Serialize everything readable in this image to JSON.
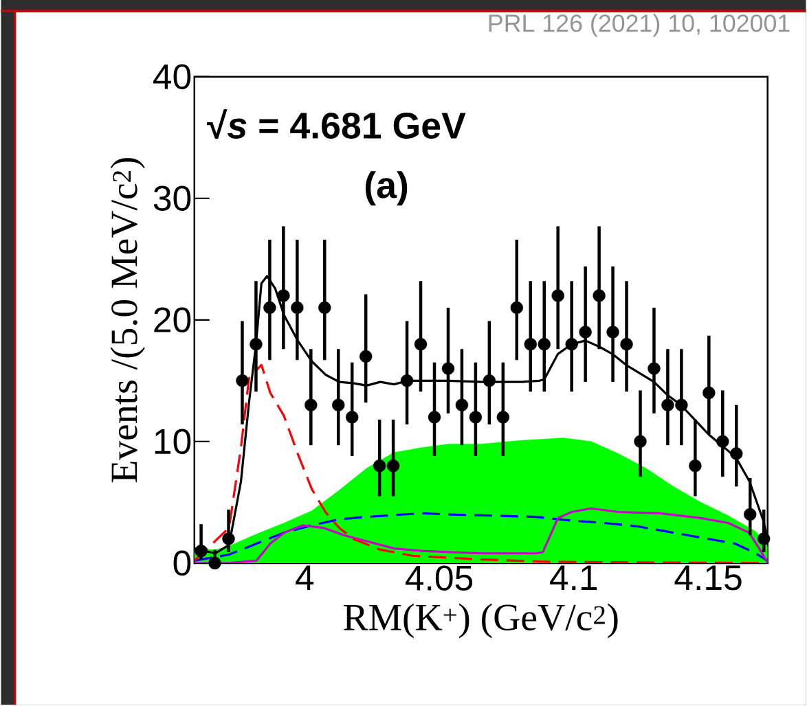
{
  "chart_data": {
    "type": "line",
    "xlabel": "RM(K$^{+}$) (GeV/c$^{2}$)",
    "ylabel": "Events /(5.0 MeV/c$^{2}$)",
    "annotations": [
      "PRL 126 (2021) 10, 102001",
      "√*s* = 4.681 GeV",
      "(a)"
    ],
    "xlim": [
      3.959,
      4.172
    ],
    "ylim": [
      0,
      40
    ],
    "xticks": [
      4,
      4.05,
      4.1,
      4.15
    ],
    "yticks": [
      0,
      10,
      20,
      30,
      40
    ],
    "series": [
      {
        "type": "area",
        "color": "#00ff00",
        "x": [
          3.959,
          3.9668,
          3.9719,
          3.9821,
          3.9923,
          4.0026,
          4.0128,
          4.023,
          4.0332,
          4.0434,
          4.0536,
          4.0656,
          4.0809,
          4.0962,
          4.1064,
          4.1166,
          4.1268,
          4.137,
          4.1472,
          4.1574,
          4.1676,
          4.172
        ],
        "values": [
          1.2,
          1.1,
          1.4,
          2.4,
          3.3,
          4.3,
          6.0,
          7.8,
          9.1,
          9.5,
          9.8,
          9.8,
          10.1,
          10.3,
          10.0,
          9.0,
          7.8,
          6.3,
          5.0,
          3.9,
          2.6,
          1.4
        ]
      },
      {
        "color": "#0000ff",
        "line_style": "dashed",
        "x": [
          3.959,
          3.9668,
          3.9719,
          3.9821,
          3.9923,
          4.0026,
          4.0128,
          4.023,
          4.0434,
          4.0536,
          4.0707,
          4.086,
          4.0987,
          4.1115,
          4.1242,
          4.137,
          4.1497,
          4.1599,
          4.1676,
          4.172
        ],
        "values": [
          0.2,
          null,
          0.7,
          1.6,
          2.5,
          3.1,
          3.6,
          3.8,
          4.1,
          4.0,
          3.9,
          3.8,
          3.5,
          3.3,
          3.0,
          2.5,
          2.0,
          1.6,
          0.8,
          0.2
        ]
      },
      {
        "color": "#cc00cc",
        "x": [
          3.959,
          3.9719,
          3.9821,
          3.9872,
          3.9923,
          3.9992,
          4.0069,
          4.0145,
          4.023,
          4.0332,
          4.0434,
          4.0536,
          4.0656,
          4.086,
          4.0885,
          4.0911,
          4.0941,
          4.0992,
          4.1064,
          4.1166,
          4.1319,
          4.1472,
          4.1574,
          4.1651,
          4.1689,
          4.172
        ],
        "values": [
          0,
          0,
          0.2,
          1.6,
          2.5,
          3.1,
          2.9,
          2.3,
          1.8,
          1.2,
          1.0,
          0.9,
          0.8,
          0.8,
          0.9,
          2.2,
          3.7,
          4.2,
          4.5,
          4.2,
          4.1,
          3.7,
          3.3,
          2.5,
          1.2,
          0
        ]
      },
      {
        "color": "#ff0000",
        "line_style": "dashed",
        "x": [
          3.959,
          3.9719,
          3.9763,
          3.9793,
          3.9819,
          3.9839,
          3.9872,
          3.9923,
          3.9974,
          4.0026,
          4.0077,
          4.0128,
          4.0179,
          4.0281,
          4.0401,
          4.0656,
          4.0911,
          4.172
        ],
        "values": [
          0.2,
          2.9,
          9.5,
          15.2,
          null,
          16.3,
          14.0,
          12.1,
          9.0,
          6.1,
          4.2,
          2.9,
          2.0,
          1.1,
          0.6,
          0.3,
          0.1,
          0
        ]
      },
      {
        "color": "#000000",
        "x": [
          3.959,
          3.9668,
          3.9719,
          3.9763,
          3.9793,
          3.9819,
          3.9839,
          3.986,
          3.989,
          3.9923,
          3.9974,
          4.0026,
          4.0077,
          4.0128,
          4.0179,
          4.023,
          4.0281,
          4.0332,
          4.0383,
          4.0533,
          4.0656,
          4.0809,
          4.0872,
          4.089,
          4.0941,
          4.0992,
          4.1043,
          4.1094,
          4.1143,
          4.1194,
          4.1298,
          4.1349,
          4.1398,
          4.15,
          4.1602,
          4.1653,
          4.1704,
          4.172
        ],
        "values": [
          1.2,
          0.8,
          1.5,
          6.7,
          13.2,
          18.0,
          23.0,
          23.6,
          22.6,
          20.4,
          18.3,
          16.6,
          15.5,
          14.9,
          14.8,
          14.6,
          14.9,
          14.7,
          15.0,
          15.0,
          14.9,
          14.9,
          15.0,
          15.1,
          17.2,
          18.0,
          18.3,
          17.8,
          17.2,
          16.3,
          14.9,
          13.8,
          13.0,
          10.6,
          8.7,
          6.7,
          3.5,
          2.0
        ]
      },
      {
        "type": "scatter",
        "color": "#000000",
        "marker": "circle",
        "x": [
          3.9615,
          3.9666,
          3.9717,
          3.9768,
          3.9819,
          3.987,
          3.9921,
          3.9972,
          4.0023,
          4.0074,
          4.0125,
          4.0176,
          4.0227,
          4.0278,
          4.0329,
          4.038,
          4.0431,
          4.0482,
          4.0533,
          4.0584,
          4.0635,
          4.0686,
          4.0737,
          4.0788,
          4.0839,
          4.089,
          4.0941,
          4.0992,
          4.1043,
          4.1094,
          4.1145,
          4.1196,
          4.1247,
          4.1298,
          4.1349,
          4.14,
          4.1451,
          4.1502,
          4.1553,
          4.1604,
          4.1655,
          4.1706
        ],
        "values": [
          1,
          0,
          2,
          15,
          18,
          21,
          22,
          21,
          13,
          21,
          13,
          12,
          17,
          8,
          8,
          15,
          18,
          12,
          16,
          13,
          12,
          15,
          12,
          21,
          18,
          18,
          22,
          18,
          19,
          22,
          19,
          18,
          10,
          16,
          13,
          13,
          8,
          14,
          10,
          9,
          4,
          2
        ],
        "errors": [
          [
            0.3,
            3.2
          ],
          [
            0,
            1.1
          ],
          [
            0.9,
            4.4
          ],
          [
            11.4,
            19.9
          ],
          [
            14.1,
            23.2
          ],
          [
            16.7,
            26.6
          ],
          [
            17.6,
            27.7
          ],
          [
            16.7,
            26.6
          ],
          [
            9.7,
            17.6
          ],
          [
            16.7,
            26.6
          ],
          [
            9.7,
            17.6
          ],
          [
            8.8,
            16.5
          ],
          [
            13.2,
            22.1
          ],
          [
            5.5,
            11.8
          ],
          [
            5.5,
            11.8
          ],
          [
            11.4,
            19.9
          ],
          [
            14.1,
            23.2
          ],
          [
            8.8,
            16.5
          ],
          [
            12.3,
            21.0
          ],
          [
            9.7,
            17.6
          ],
          [
            8.8,
            16.5
          ],
          [
            11.4,
            19.9
          ],
          [
            8.8,
            16.5
          ],
          [
            16.7,
            26.6
          ],
          [
            14.1,
            23.2
          ],
          [
            14.1,
            23.2
          ],
          [
            17.6,
            27.7
          ],
          [
            14.1,
            23.2
          ],
          [
            14.9,
            24.4
          ],
          [
            17.6,
            27.7
          ],
          [
            14.9,
            24.4
          ],
          [
            14.1,
            23.2
          ],
          [
            7.1,
            14.2
          ],
          [
            12.3,
            21.0
          ],
          [
            9.7,
            17.6
          ],
          [
            9.7,
            17.6
          ],
          [
            5.5,
            11.8
          ],
          [
            10.6,
            18.7
          ],
          [
            7.1,
            14.2
          ],
          [
            6.3,
            13.0
          ],
          [
            2.3,
            7.0
          ],
          [
            0.9,
            4.4
          ]
        ]
      }
    ]
  }
}
